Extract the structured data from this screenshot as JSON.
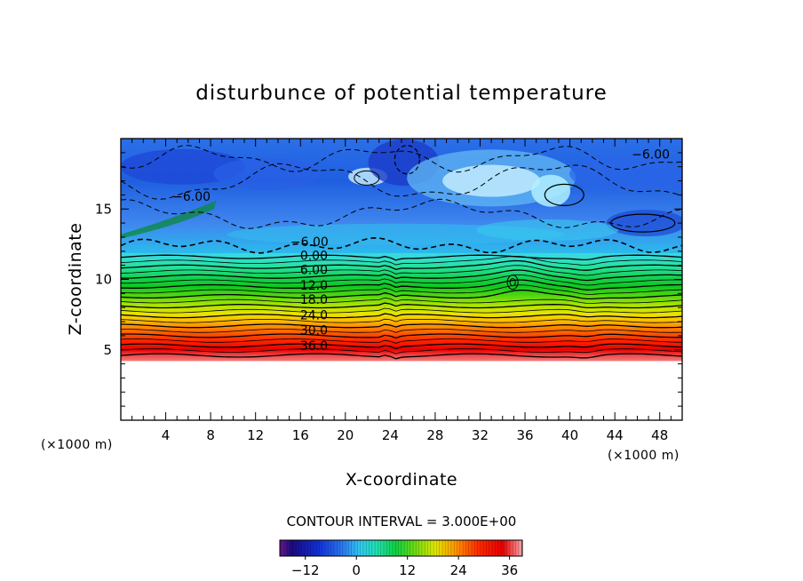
{
  "chart_data": {
    "type": "heatmap",
    "title": "disturbunce of potential temperature",
    "xlabel": "X-coordinate",
    "ylabel": "Z-coordinate",
    "x_unit": "(×1000 m)",
    "y_unit": "(×1000 m)",
    "xlim": [
      0,
      50
    ],
    "ylim": [
      0,
      20
    ],
    "x_ticks": [
      4,
      8,
      12,
      16,
      20,
      24,
      28,
      32,
      36,
      40,
      44,
      48
    ],
    "y_ticks": [
      5,
      10,
      15
    ],
    "contour_interval_text": "CONTOUR INTERVAL = 3.000E+00",
    "colorbar": {
      "range": [
        -18,
        39
      ],
      "ticks": [
        -12,
        0,
        12,
        24,
        36
      ],
      "tick_labels": [
        "−12",
        "0",
        "12",
        "24",
        "36"
      ]
    },
    "terrain_top_z": 4.2,
    "contour_labels": [
      {
        "text": "−6.00",
        "x": 6.3,
        "z": 15.7
      },
      {
        "text": "−6.00",
        "x": 47.2,
        "z": 18.7
      },
      {
        "text": "−6.00",
        "x": 16.8,
        "z": 12.5
      },
      {
        "text": "0.00",
        "x": 17.2,
        "z": 11.5
      },
      {
        "text": "6.00",
        "x": 17.2,
        "z": 10.5
      },
      {
        "text": "12.0",
        "x": 17.2,
        "z": 9.4
      },
      {
        "text": "18.0",
        "x": 17.2,
        "z": 8.4
      },
      {
        "text": "24.0",
        "x": 17.2,
        "z": 7.3
      },
      {
        "text": "30.0",
        "x": 17.2,
        "z": 6.2
      },
      {
        "text": "36.0",
        "x": 17.2,
        "z": 5.1
      }
    ],
    "profile_at_x25": [
      {
        "z": 4.2,
        "value": 39
      },
      {
        "z": 5.0,
        "value": 36
      },
      {
        "z": 6.0,
        "value": 30
      },
      {
        "z": 7.0,
        "value": 24
      },
      {
        "z": 8.0,
        "value": 18
      },
      {
        "z": 9.0,
        "value": 12
      },
      {
        "z": 10.0,
        "value": 6
      },
      {
        "z": 11.0,
        "value": 0
      },
      {
        "z": 12.0,
        "value": -3
      },
      {
        "z": 13.5,
        "value": -6
      },
      {
        "z": 16.0,
        "value": -9
      },
      {
        "z": 20.0,
        "value": -8
      }
    ]
  }
}
